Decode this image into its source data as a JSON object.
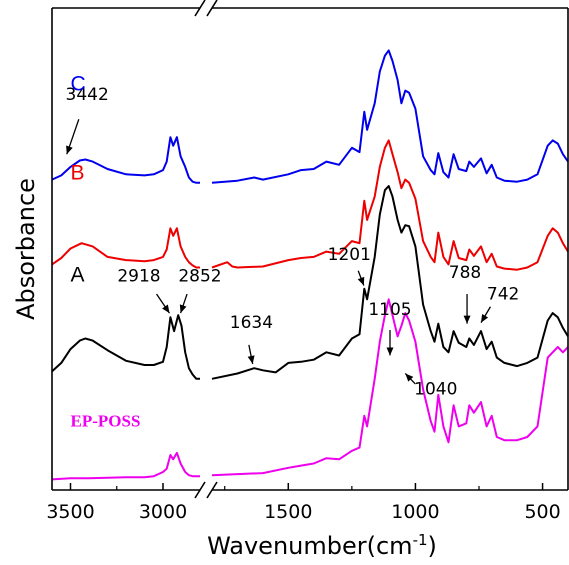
{
  "chart_data": {
    "type": "line",
    "xlabel": "Wavenumber(cm",
    "xlabel_sup": "-1",
    "xlabel_close": ")",
    "ylabel": "Absorbance",
    "x_reversed": true,
    "axis_break": {
      "from": 2800,
      "to": 1800
    },
    "xlim": [
      3600,
      400
    ],
    "x_ticks": [
      {
        "value": 3500,
        "label": "3500"
      },
      {
        "value": 3000,
        "label": "3000"
      },
      {
        "value": 1500,
        "label": "1500"
      },
      {
        "value": 1000,
        "label": "1000"
      },
      {
        "value": 500,
        "label": "500"
      }
    ],
    "ylim": [
      -0.05,
      4.5
    ],
    "y_ticks_labeled": false,
    "grid": false,
    "series": [
      {
        "name": "C",
        "color": "#0000ee",
        "label_style": "sans",
        "label_pos": [
          3500,
          3.72
        ],
        "points": [
          [
            3600,
            2.88
          ],
          [
            3550,
            2.92
          ],
          [
            3500,
            3.0
          ],
          [
            3450,
            3.06
          ],
          [
            3420,
            3.07
          ],
          [
            3380,
            3.05
          ],
          [
            3300,
            2.98
          ],
          [
            3200,
            2.93
          ],
          [
            3100,
            2.92
          ],
          [
            3050,
            2.93
          ],
          [
            3000,
            2.97
          ],
          [
            2980,
            3.05
          ],
          [
            2960,
            3.28
          ],
          [
            2945,
            3.2
          ],
          [
            2925,
            3.28
          ],
          [
            2905,
            3.1
          ],
          [
            2880,
            3.0
          ],
          [
            2860,
            2.9
          ],
          [
            2840,
            2.86
          ],
          [
            2820,
            2.85
          ],
          [
            2800,
            2.85
          ],
          [
            1800,
            2.85
          ],
          [
            1700,
            2.87
          ],
          [
            1634,
            2.9
          ],
          [
            1600,
            2.88
          ],
          [
            1500,
            2.93
          ],
          [
            1450,
            2.97
          ],
          [
            1400,
            2.98
          ],
          [
            1350,
            3.05
          ],
          [
            1300,
            3.02
          ],
          [
            1250,
            3.18
          ],
          [
            1220,
            3.14
          ],
          [
            1201,
            3.52
          ],
          [
            1190,
            3.35
          ],
          [
            1160,
            3.6
          ],
          [
            1140,
            3.9
          ],
          [
            1120,
            4.05
          ],
          [
            1105,
            4.1
          ],
          [
            1090,
            4.0
          ],
          [
            1070,
            3.82
          ],
          [
            1055,
            3.6
          ],
          [
            1040,
            3.72
          ],
          [
            1025,
            3.7
          ],
          [
            1000,
            3.55
          ],
          [
            970,
            3.1
          ],
          [
            940,
            2.97
          ],
          [
            925,
            2.93
          ],
          [
            910,
            3.13
          ],
          [
            890,
            2.95
          ],
          [
            870,
            2.9
          ],
          [
            850,
            3.12
          ],
          [
            830,
            2.98
          ],
          [
            800,
            2.96
          ],
          [
            788,
            3.05
          ],
          [
            770,
            3.0
          ],
          [
            742,
            3.08
          ],
          [
            720,
            2.94
          ],
          [
            700,
            3.02
          ],
          [
            680,
            2.9
          ],
          [
            650,
            2.87
          ],
          [
            600,
            2.86
          ],
          [
            560,
            2.88
          ],
          [
            520,
            2.93
          ],
          [
            480,
            3.2
          ],
          [
            460,
            3.25
          ],
          [
            440,
            3.22
          ],
          [
            420,
            3.12
          ],
          [
            400,
            3.05
          ]
        ]
      },
      {
        "name": "B",
        "color": "#ee0000",
        "label_style": "sans",
        "label_pos": [
          3500,
          2.88
        ],
        "points": [
          [
            3600,
            2.08
          ],
          [
            3550,
            2.14
          ],
          [
            3500,
            2.23
          ],
          [
            3440,
            2.28
          ],
          [
            3380,
            2.25
          ],
          [
            3300,
            2.15
          ],
          [
            3200,
            2.12
          ],
          [
            3100,
            2.11
          ],
          [
            3050,
            2.12
          ],
          [
            3000,
            2.15
          ],
          [
            2980,
            2.22
          ],
          [
            2960,
            2.42
          ],
          [
            2945,
            2.35
          ],
          [
            2925,
            2.42
          ],
          [
            2905,
            2.25
          ],
          [
            2880,
            2.15
          ],
          [
            2860,
            2.1
          ],
          [
            2840,
            2.07
          ],
          [
            2820,
            2.05
          ],
          [
            2800,
            2.05
          ],
          [
            1800,
            2.05
          ],
          [
            1740,
            2.1
          ],
          [
            1720,
            2.06
          ],
          [
            1700,
            2.05
          ],
          [
            1600,
            2.06
          ],
          [
            1500,
            2.12
          ],
          [
            1450,
            2.14
          ],
          [
            1400,
            2.15
          ],
          [
            1350,
            2.2
          ],
          [
            1300,
            2.18
          ],
          [
            1250,
            2.3
          ],
          [
            1220,
            2.28
          ],
          [
            1201,
            2.68
          ],
          [
            1190,
            2.5
          ],
          [
            1160,
            2.72
          ],
          [
            1140,
            3.0
          ],
          [
            1120,
            3.18
          ],
          [
            1105,
            3.25
          ],
          [
            1090,
            3.12
          ],
          [
            1070,
            2.95
          ],
          [
            1055,
            2.8
          ],
          [
            1040,
            2.88
          ],
          [
            1025,
            2.85
          ],
          [
            1000,
            2.7
          ],
          [
            970,
            2.3
          ],
          [
            940,
            2.15
          ],
          [
            925,
            2.1
          ],
          [
            910,
            2.38
          ],
          [
            890,
            2.15
          ],
          [
            870,
            2.08
          ],
          [
            850,
            2.3
          ],
          [
            830,
            2.14
          ],
          [
            800,
            2.12
          ],
          [
            788,
            2.22
          ],
          [
            770,
            2.16
          ],
          [
            742,
            2.25
          ],
          [
            720,
            2.1
          ],
          [
            700,
            2.18
          ],
          [
            680,
            2.06
          ],
          [
            650,
            2.04
          ],
          [
            600,
            2.03
          ],
          [
            560,
            2.05
          ],
          [
            520,
            2.1
          ],
          [
            480,
            2.35
          ],
          [
            460,
            2.42
          ],
          [
            440,
            2.38
          ],
          [
            420,
            2.28
          ],
          [
            400,
            2.2
          ]
        ]
      },
      {
        "name": "A",
        "color": "#000000",
        "label_style": "sans",
        "label_pos": [
          3500,
          1.92
        ],
        "points": [
          [
            3600,
            1.07
          ],
          [
            3550,
            1.15
          ],
          [
            3500,
            1.28
          ],
          [
            3450,
            1.36
          ],
          [
            3420,
            1.38
          ],
          [
            3380,
            1.36
          ],
          [
            3300,
            1.27
          ],
          [
            3200,
            1.17
          ],
          [
            3100,
            1.13
          ],
          [
            3050,
            1.13
          ],
          [
            3000,
            1.16
          ],
          [
            2980,
            1.3
          ],
          [
            2960,
            1.58
          ],
          [
            2940,
            1.45
          ],
          [
            2918,
            1.6
          ],
          [
            2900,
            1.5
          ],
          [
            2880,
            1.25
          ],
          [
            2860,
            1.1
          ],
          [
            2840,
            1.04
          ],
          [
            2820,
            1.0
          ],
          [
            2800,
            1.0
          ],
          [
            1800,
            1.0
          ],
          [
            1700,
            1.05
          ],
          [
            1634,
            1.1
          ],
          [
            1600,
            1.08
          ],
          [
            1550,
            1.06
          ],
          [
            1500,
            1.15
          ],
          [
            1450,
            1.16
          ],
          [
            1400,
            1.18
          ],
          [
            1350,
            1.25
          ],
          [
            1300,
            1.22
          ],
          [
            1250,
            1.38
          ],
          [
            1220,
            1.42
          ],
          [
            1201,
            1.85
          ],
          [
            1190,
            1.75
          ],
          [
            1160,
            2.15
          ],
          [
            1140,
            2.55
          ],
          [
            1120,
            2.78
          ],
          [
            1105,
            2.82
          ],
          [
            1090,
            2.72
          ],
          [
            1070,
            2.5
          ],
          [
            1055,
            2.38
          ],
          [
            1040,
            2.45
          ],
          [
            1025,
            2.44
          ],
          [
            1000,
            2.25
          ],
          [
            970,
            1.7
          ],
          [
            940,
            1.45
          ],
          [
            925,
            1.35
          ],
          [
            910,
            1.52
          ],
          [
            890,
            1.3
          ],
          [
            870,
            1.25
          ],
          [
            850,
            1.45
          ],
          [
            830,
            1.34
          ],
          [
            800,
            1.3
          ],
          [
            788,
            1.38
          ],
          [
            770,
            1.32
          ],
          [
            742,
            1.45
          ],
          [
            720,
            1.28
          ],
          [
            700,
            1.35
          ],
          [
            680,
            1.2
          ],
          [
            650,
            1.15
          ],
          [
            600,
            1.12
          ],
          [
            560,
            1.15
          ],
          [
            520,
            1.2
          ],
          [
            480,
            1.55
          ],
          [
            460,
            1.62
          ],
          [
            440,
            1.58
          ],
          [
            420,
            1.48
          ],
          [
            400,
            1.4
          ]
        ]
      },
      {
        "name": "EP-POSS",
        "color": "#ee00ee",
        "label_style": "serif",
        "label_pos": [
          3500,
          0.55
        ],
        "points": [
          [
            3600,
            0.05
          ],
          [
            3500,
            0.06
          ],
          [
            3400,
            0.06
          ],
          [
            3200,
            0.07
          ],
          [
            3100,
            0.07
          ],
          [
            3050,
            0.08
          ],
          [
            3000,
            0.12
          ],
          [
            2980,
            0.15
          ],
          [
            2960,
            0.28
          ],
          [
            2945,
            0.24
          ],
          [
            2925,
            0.3
          ],
          [
            2905,
            0.2
          ],
          [
            2880,
            0.12
          ],
          [
            2860,
            0.09
          ],
          [
            2840,
            0.08
          ],
          [
            2820,
            0.08
          ],
          [
            2800,
            0.08
          ],
          [
            1800,
            0.09
          ],
          [
            1700,
            0.1
          ],
          [
            1600,
            0.11
          ],
          [
            1500,
            0.16
          ],
          [
            1450,
            0.18
          ],
          [
            1400,
            0.2
          ],
          [
            1350,
            0.25
          ],
          [
            1300,
            0.24
          ],
          [
            1250,
            0.32
          ],
          [
            1220,
            0.35
          ],
          [
            1201,
            0.65
          ],
          [
            1190,
            0.55
          ],
          [
            1160,
            1.0
          ],
          [
            1140,
            1.35
          ],
          [
            1120,
            1.6
          ],
          [
            1105,
            1.75
          ],
          [
            1090,
            1.6
          ],
          [
            1070,
            1.4
          ],
          [
            1055,
            1.5
          ],
          [
            1040,
            1.62
          ],
          [
            1025,
            1.55
          ],
          [
            1000,
            1.35
          ],
          [
            970,
            0.9
          ],
          [
            940,
            0.6
          ],
          [
            925,
            0.5
          ],
          [
            910,
            0.85
          ],
          [
            890,
            0.55
          ],
          [
            870,
            0.4
          ],
          [
            850,
            0.75
          ],
          [
            830,
            0.55
          ],
          [
            800,
            0.58
          ],
          [
            788,
            0.75
          ],
          [
            770,
            0.68
          ],
          [
            742,
            0.78
          ],
          [
            720,
            0.55
          ],
          [
            700,
            0.65
          ],
          [
            680,
            0.45
          ],
          [
            650,
            0.42
          ],
          [
            600,
            0.42
          ],
          [
            560,
            0.45
          ],
          [
            520,
            0.55
          ],
          [
            480,
            1.2
          ],
          [
            460,
            1.25
          ],
          [
            440,
            1.3
          ],
          [
            420,
            1.25
          ],
          [
            400,
            1.3
          ]
        ]
      }
    ],
    "annotations": [
      {
        "label": "3442",
        "text_pos": [
          3410,
          3.63
        ],
        "arrow_from": [
          3455,
          3.45
        ],
        "arrow_to": [
          3520,
          3.12
        ]
      },
      {
        "label": "2918",
        "text_pos": [
          3130,
          1.92
        ],
        "arrow_from": [
          3035,
          1.8
        ],
        "arrow_to": [
          2965,
          1.62
        ]
      },
      {
        "label": "2852",
        "text_pos": [
          2760,
          1.92
        ],
        "arrow_from": [
          2870,
          1.8
        ],
        "arrow_to": [
          2905,
          1.62
        ]
      },
      {
        "label": "1634",
        "text_pos": [
          1645,
          1.48
        ],
        "arrow_from": [
          1655,
          1.32
        ],
        "arrow_to": [
          1640,
          1.14
        ]
      },
      {
        "label": "1201",
        "text_pos": [
          1260,
          2.12
        ],
        "arrow_from": [
          1225,
          2.02
        ],
        "arrow_to": [
          1203,
          1.88
        ]
      },
      {
        "label": "1105",
        "text_pos": [
          1100,
          1.6
        ],
        "arrow_from": [
          1100,
          1.46
        ],
        "arrow_to": [
          1100,
          1.22
        ]
      },
      {
        "label": "1040",
        "text_pos": [
          920,
          0.85
        ],
        "arrow_from": [
          1000,
          0.95
        ],
        "arrow_to": [
          1040,
          1.05
        ]
      },
      {
        "label": "788",
        "text_pos": [
          805,
          1.95
        ],
        "arrow_from": [
          797,
          1.8
        ],
        "arrow_to": [
          797,
          1.52
        ]
      },
      {
        "label": "742",
        "text_pos": [
          655,
          1.75
        ],
        "arrow_from": [
          705,
          1.68
        ],
        "arrow_to": [
          742,
          1.53
        ]
      }
    ]
  }
}
